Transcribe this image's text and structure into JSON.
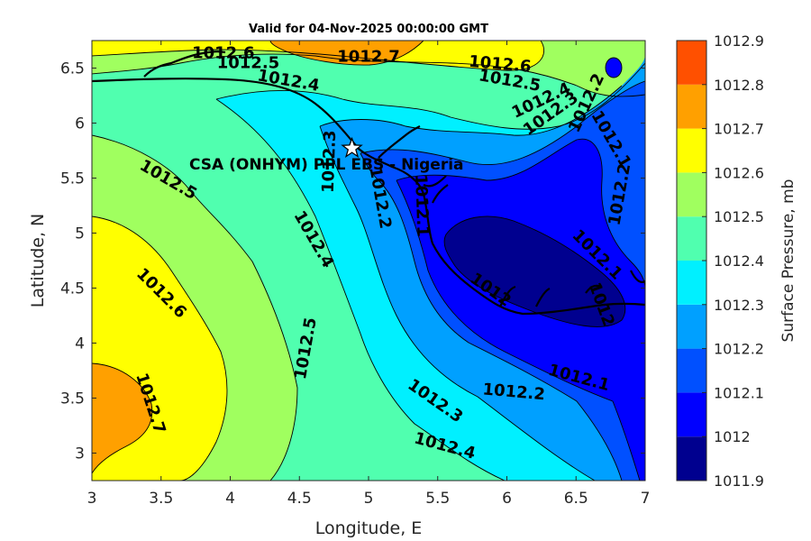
{
  "title": "Valid for 04-Nov-2025 00:00:00 GMT",
  "xlabel": "Longitude, E",
  "ylabel": "Latitude, N",
  "colorbar_label": "Surface Pressure, mb",
  "site": {
    "name": "CSA (ONHYM) PPL EBS - Nigeria",
    "lon": 4.88,
    "lat": 5.77,
    "marker": "star"
  },
  "chart_data": {
    "type": "contour",
    "xlim": [
      3,
      7
    ],
    "ylim": [
      2.75,
      6.75
    ],
    "xticks": [
      3,
      3.5,
      4,
      4.5,
      5,
      5.5,
      6,
      6.5,
      7
    ],
    "xtick_labels": [
      "3",
      "3.5",
      "4",
      "4.5",
      "5",
      "5.5",
      "6",
      "6.5",
      "7"
    ],
    "yticks": [
      3,
      3.5,
      4,
      4.5,
      5,
      5.5,
      6,
      6.5
    ],
    "ytick_labels": [
      "3",
      "3.5",
      "4",
      "4.5",
      "5",
      "5.5",
      "6",
      "6.5"
    ],
    "colorbar": {
      "levels": [
        1011.9,
        1012,
        1012.1,
        1012.2,
        1012.3,
        1012.4,
        1012.5,
        1012.6,
        1012.7,
        1012.8,
        1012.9
      ],
      "labels": [
        "1011.9",
        "1012",
        "1012.1",
        "1012.2",
        "1012.3",
        "1012.4",
        "1012.5",
        "1012.6",
        "1012.7",
        "1012.8",
        "1012.9"
      ],
      "colors": [
        "#00008f",
        "#0000ff",
        "#0050ff",
        "#00a0ff",
        "#00f0ff",
        "#50ffaf",
        "#a0ff5f",
        "#ffff00",
        "#ffa000",
        "#ff5000",
        "#ff0000"
      ]
    },
    "contour_labels": [
      {
        "text": "1012.6",
        "lon": 3.95,
        "lat": 6.63,
        "rot": 0
      },
      {
        "text": "1012.5",
        "lon": 4.13,
        "lat": 6.54,
        "rot": 0
      },
      {
        "text": "1012.7",
        "lon": 5.0,
        "lat": 6.6,
        "rot": 0
      },
      {
        "text": "1012.4",
        "lon": 4.42,
        "lat": 6.38,
        "rot": 10
      },
      {
        "text": "1012.6",
        "lon": 5.95,
        "lat": 6.53,
        "rot": 5
      },
      {
        "text": "1012.5",
        "lon": 6.02,
        "lat": 6.38,
        "rot": 10
      },
      {
        "text": "1012.4",
        "lon": 6.25,
        "lat": 6.2,
        "rot": -25
      },
      {
        "text": "1012.3",
        "lon": 6.32,
        "lat": 6.08,
        "rot": -35
      },
      {
        "text": "1012.2",
        "lon": 6.58,
        "lat": 6.18,
        "rot": -65
      },
      {
        "text": "1012.3",
        "lon": 4.72,
        "lat": 5.65,
        "rot": -88
      },
      {
        "text": "1012.5",
        "lon": 3.55,
        "lat": 5.48,
        "rot": 30
      },
      {
        "text": "1012.2",
        "lon": 5.08,
        "lat": 5.32,
        "rot": 80
      },
      {
        "text": "1012.1",
        "lon": 5.38,
        "lat": 5.25,
        "rot": 88
      },
      {
        "text": "1012.1",
        "lon": 6.75,
        "lat": 5.85,
        "rot": 60
      },
      {
        "text": "1012.2",
        "lon": 6.82,
        "lat": 5.35,
        "rot": -80
      },
      {
        "text": "1012.4",
        "lon": 4.6,
        "lat": 4.94,
        "rot": 60
      },
      {
        "text": "1012.6",
        "lon": 3.5,
        "lat": 4.45,
        "rot": 45
      },
      {
        "text": "1012.1",
        "lon": 6.65,
        "lat": 4.8,
        "rot": 45
      },
      {
        "text": "1012",
        "lon": 5.88,
        "lat": 4.48,
        "rot": 35
      },
      {
        "text": "1012",
        "lon": 6.68,
        "lat": 4.35,
        "rot": 70
      },
      {
        "text": "1012.5",
        "lon": 4.55,
        "lat": 3.95,
        "rot": -80
      },
      {
        "text": "1012.1",
        "lon": 6.52,
        "lat": 3.68,
        "rot": 15
      },
      {
        "text": "1012.2",
        "lon": 6.05,
        "lat": 3.55,
        "rot": 5
      },
      {
        "text": "1012.3",
        "lon": 5.48,
        "lat": 3.47,
        "rot": 35
      },
      {
        "text": "1012.4",
        "lon": 5.55,
        "lat": 3.06,
        "rot": 15
      },
      {
        "text": "1012.7",
        "lon": 3.42,
        "lat": 3.45,
        "rot": 72
      }
    ]
  }
}
